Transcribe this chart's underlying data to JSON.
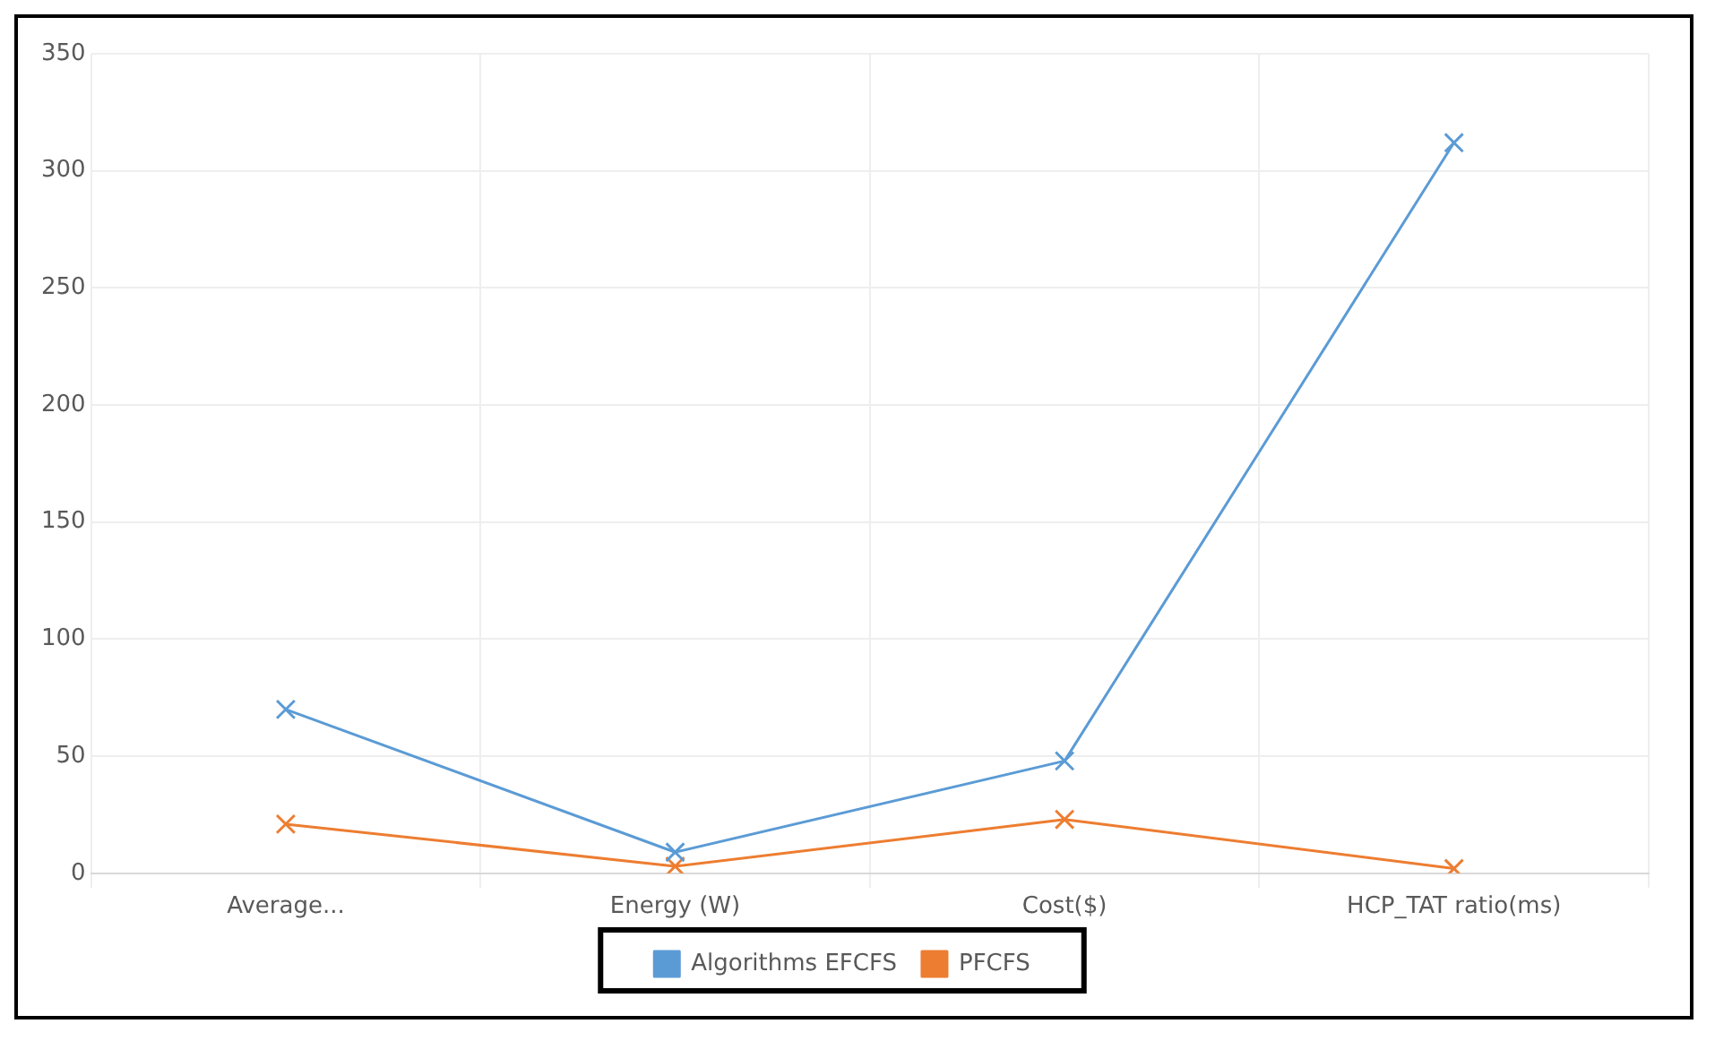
{
  "chart_data": {
    "type": "line",
    "categories": [
      "Average...",
      "Energy (W)",
      "Cost($)",
      "HCP_TAT ratio(ms)"
    ],
    "series": [
      {
        "name": "Algorithms EFCFS",
        "color": "#5b9bd5",
        "values": [
          70,
          9,
          48,
          312
        ]
      },
      {
        "name": "PFCFS",
        "color": "#ed7d31",
        "values": [
          21,
          3,
          23,
          2
        ]
      }
    ],
    "ylim": [
      0,
      350
    ],
    "yticks": [
      0,
      50,
      100,
      150,
      200,
      250,
      300,
      350
    ],
    "grid": true,
    "legend": "bottom",
    "marker": "cross"
  }
}
